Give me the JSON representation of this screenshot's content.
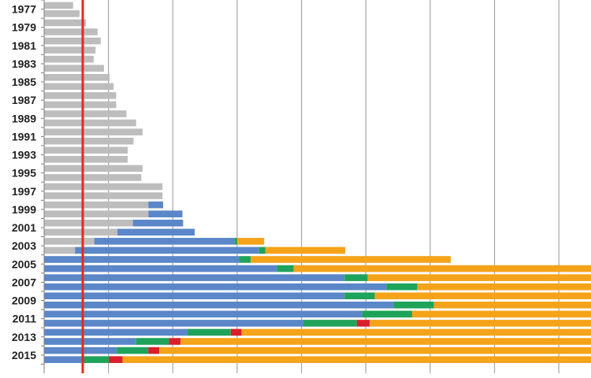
{
  "chart_data": {
    "type": "bar",
    "orientation": "horizontal",
    "stacked": true,
    "xlim": [
      0,
      85
    ],
    "ylim": [
      1976,
      2017
    ],
    "grid": true,
    "tick_labels": [
      "1977",
      "1979",
      "1981",
      "1983",
      "1985",
      "1987",
      "1989",
      "1991",
      "1993",
      "1995",
      "1997",
      "1999",
      "2001",
      "2003",
      "2005",
      "2007",
      "2009",
      "2011",
      "2013",
      "2015"
    ],
    "reference_line": {
      "x": 6,
      "color": "#e8291c"
    },
    "colors": {
      "gray": "#bdbdbd",
      "blue": "#5b87c8",
      "green": "#1fa35a",
      "red": "#d8202b",
      "orange": "#f5a31a",
      "grid": "#a6a6a6",
      "axis": "#7f7f7f"
    },
    "segment_order": [
      "gray",
      "blue",
      "green",
      "red",
      "orange"
    ],
    "rows": [
      {
        "y": 1976.6,
        "segments": {
          "gray": [
            0,
            4.5
          ]
        }
      },
      {
        "y": 1977.5,
        "segments": {
          "gray": [
            0,
            5.5
          ]
        }
      },
      {
        "y": 1978.5,
        "segments": {
          "gray": [
            0,
            6.5
          ]
        }
      },
      {
        "y": 1979.5,
        "segments": {
          "gray": [
            0,
            8.3
          ]
        }
      },
      {
        "y": 1980.5,
        "segments": {
          "gray": [
            0,
            8.8
          ]
        }
      },
      {
        "y": 1981.5,
        "segments": {
          "gray": [
            0,
            8.0
          ]
        }
      },
      {
        "y": 1982.5,
        "segments": {
          "gray": [
            0,
            7.7
          ]
        }
      },
      {
        "y": 1983.5,
        "segments": {
          "gray": [
            0,
            9.3
          ]
        }
      },
      {
        "y": 1984.5,
        "segments": {
          "gray": [
            0,
            10.2
          ]
        }
      },
      {
        "y": 1985.5,
        "segments": {
          "gray": [
            0,
            10.8
          ]
        }
      },
      {
        "y": 1986.5,
        "segments": {
          "gray": [
            0,
            11.2
          ]
        }
      },
      {
        "y": 1987.5,
        "segments": {
          "gray": [
            0,
            11.2
          ]
        }
      },
      {
        "y": 1988.5,
        "segments": {
          "gray": [
            0,
            12.8
          ]
        }
      },
      {
        "y": 1989.5,
        "segments": {
          "gray": [
            0,
            14.3
          ]
        }
      },
      {
        "y": 1990.5,
        "segments": {
          "gray": [
            0,
            15.3
          ]
        }
      },
      {
        "y": 1991.5,
        "segments": {
          "gray": [
            0,
            13.9
          ]
        }
      },
      {
        "y": 1992.5,
        "segments": {
          "gray": [
            0,
            13.0
          ]
        }
      },
      {
        "y": 1993.5,
        "segments": {
          "gray": [
            0,
            13.0
          ]
        }
      },
      {
        "y": 1994.5,
        "segments": {
          "gray": [
            0,
            15.3
          ]
        }
      },
      {
        "y": 1995.5,
        "segments": {
          "gray": [
            0,
            15.1
          ]
        }
      },
      {
        "y": 1996.5,
        "segments": {
          "gray": [
            0,
            18.4
          ]
        }
      },
      {
        "y": 1997.5,
        "segments": {
          "gray": [
            0,
            18.4
          ]
        }
      },
      {
        "y": 1998.5,
        "segments": {
          "gray": [
            0,
            16.2
          ],
          "blue": [
            16.2,
            18.5
          ]
        }
      },
      {
        "y": 1999.5,
        "segments": {
          "gray": [
            0,
            16.2
          ],
          "blue": [
            16.2,
            21.5
          ]
        }
      },
      {
        "y": 2000.5,
        "segments": {
          "gray": [
            0,
            13.8
          ],
          "blue": [
            13.8,
            21.6
          ]
        }
      },
      {
        "y": 2001.5,
        "segments": {
          "gray": [
            0,
            11.4
          ],
          "blue": [
            11.4,
            23.4
          ]
        }
      },
      {
        "y": 2002.5,
        "segments": {
          "gray": [
            0,
            7.8
          ],
          "blue": [
            7.8,
            29.6
          ],
          "green": [
            29.6,
            30.0
          ],
          "orange": [
            30.0,
            34.2
          ]
        }
      },
      {
        "y": 2003.5,
        "segments": {
          "gray": [
            0,
            4.8
          ],
          "blue": [
            4.8,
            33.4
          ],
          "green": [
            33.4,
            34.4
          ],
          "orange": [
            34.4,
            46.8
          ]
        }
      },
      {
        "y": 2004.5,
        "segments": {
          "blue": [
            0,
            30.3
          ],
          "green": [
            30.3,
            32.1
          ],
          "orange": [
            32.1,
            63.2
          ]
        }
      },
      {
        "y": 2005.5,
        "segments": {
          "blue": [
            0,
            36.2
          ],
          "green": [
            36.2,
            38.8
          ],
          "orange": [
            38.8,
            85
          ]
        }
      },
      {
        "y": 2006.5,
        "segments": {
          "blue": [
            0,
            46.7
          ],
          "green": [
            46.7,
            50.3
          ],
          "orange": [
            50.3,
            85
          ]
        }
      },
      {
        "y": 2007.5,
        "segments": {
          "blue": [
            0,
            53.2
          ],
          "green": [
            53.2,
            58.0
          ],
          "orange": [
            58.0,
            85
          ]
        }
      },
      {
        "y": 2008.5,
        "segments": {
          "blue": [
            0,
            46.7
          ],
          "green": [
            46.7,
            51.4
          ],
          "orange": [
            51.4,
            85
          ]
        }
      },
      {
        "y": 2009.5,
        "segments": {
          "blue": [
            0,
            54.3
          ],
          "green": [
            54.3,
            60.6
          ],
          "orange": [
            60.6,
            85
          ]
        }
      },
      {
        "y": 2010.5,
        "segments": {
          "blue": [
            0,
            49.4
          ],
          "green": [
            49.4,
            57.2
          ],
          "orange": [
            57.2,
            85
          ]
        }
      },
      {
        "y": 2011.5,
        "segments": {
          "blue": [
            0,
            40.3
          ],
          "green": [
            40.3,
            48.6
          ],
          "red": [
            48.6,
            50.6
          ],
          "orange": [
            50.6,
            85
          ]
        }
      },
      {
        "y": 2012.5,
        "segments": {
          "blue": [
            0,
            22.3
          ],
          "green": [
            22.3,
            29.0
          ],
          "red": [
            29.0,
            30.7
          ],
          "orange": [
            30.7,
            85
          ]
        }
      },
      {
        "y": 2013.5,
        "segments": {
          "blue": [
            0,
            14.3
          ],
          "green": [
            14.3,
            19.4
          ],
          "red": [
            19.4,
            21.2
          ],
          "orange": [
            21.2,
            85
          ]
        }
      },
      {
        "y": 2014.5,
        "segments": {
          "blue": [
            0,
            11.3
          ],
          "green": [
            11.3,
            16.2
          ],
          "red": [
            16.2,
            17.9
          ],
          "orange": [
            17.9,
            85
          ]
        }
      },
      {
        "y": 2015.5,
        "segments": {
          "blue": [
            0,
            6.1
          ],
          "green": [
            6.1,
            10.1
          ],
          "red": [
            10.1,
            12.2
          ],
          "orange": [
            12.2,
            85
          ]
        }
      }
    ]
  }
}
